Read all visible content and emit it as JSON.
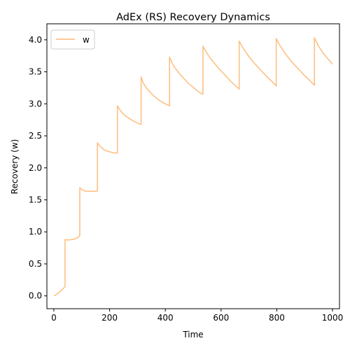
{
  "chart_data": {
    "type": "line",
    "title": "AdEx (RS) Recovery Dynamics",
    "xlabel": "Time",
    "ylabel": "Recovery (w)",
    "xlim": [
      -25,
      1025
    ],
    "ylim": [
      -0.2,
      4.25
    ],
    "xticks": [
      0,
      200,
      400,
      600,
      800,
      1000
    ],
    "xtick_labels": [
      "0",
      "200",
      "400",
      "600",
      "800",
      "1000"
    ],
    "yticks": [
      0.0,
      0.5,
      1.0,
      1.5,
      2.0,
      2.5,
      3.0,
      3.5,
      4.0
    ],
    "ytick_labels": [
      "0.0",
      "0.5",
      "1.0",
      "1.5",
      "2.0",
      "2.5",
      "3.0",
      "3.5",
      "4.0"
    ],
    "grid": false,
    "legend_position": "upper-left",
    "series": [
      {
        "name": "w",
        "color": "#fdc086",
        "x": [
          0,
          5,
          15,
          25,
          35,
          40,
          40,
          45,
          55,
          65,
          75,
          85,
          93,
          93,
          100,
          110,
          120,
          130,
          140,
          150,
          156,
          156,
          165,
          175,
          185,
          200,
          215,
          228,
          228,
          235,
          245,
          260,
          275,
          290,
          305,
          313,
          313,
          320,
          335,
          350,
          365,
          380,
          395,
          410,
          415,
          415,
          425,
          440,
          455,
          470,
          485,
          500,
          515,
          530,
          535,
          535,
          545,
          560,
          575,
          590,
          605,
          620,
          635,
          650,
          665,
          665,
          675,
          690,
          705,
          720,
          735,
          750,
          765,
          780,
          798,
          798,
          810,
          825,
          840,
          855,
          870,
          885,
          900,
          915,
          935,
          935,
          950,
          965,
          980,
          1000
        ],
        "y": [
          0.0,
          0.01,
          0.04,
          0.08,
          0.12,
          0.15,
          0.88,
          0.875,
          0.875,
          0.88,
          0.89,
          0.91,
          0.94,
          1.69,
          1.66,
          1.64,
          1.635,
          1.635,
          1.635,
          1.635,
          1.64,
          2.39,
          2.34,
          2.3,
          2.27,
          2.25,
          2.235,
          2.23,
          2.97,
          2.92,
          2.86,
          2.8,
          2.76,
          2.72,
          2.69,
          2.68,
          3.42,
          3.33,
          3.23,
          3.16,
          3.1,
          3.05,
          3.01,
          2.98,
          2.97,
          3.73,
          3.63,
          3.53,
          3.45,
          3.38,
          3.31,
          3.26,
          3.2,
          3.16,
          3.15,
          3.9,
          3.82,
          3.72,
          3.64,
          3.56,
          3.49,
          3.42,
          3.35,
          3.29,
          3.23,
          3.98,
          3.9,
          3.8,
          3.71,
          3.63,
          3.56,
          3.49,
          3.42,
          3.36,
          3.28,
          4.02,
          3.92,
          3.82,
          3.73,
          3.65,
          3.58,
          3.51,
          3.44,
          3.38,
          3.29,
          4.03,
          3.9,
          3.8,
          3.72,
          3.62
        ]
      }
    ]
  }
}
